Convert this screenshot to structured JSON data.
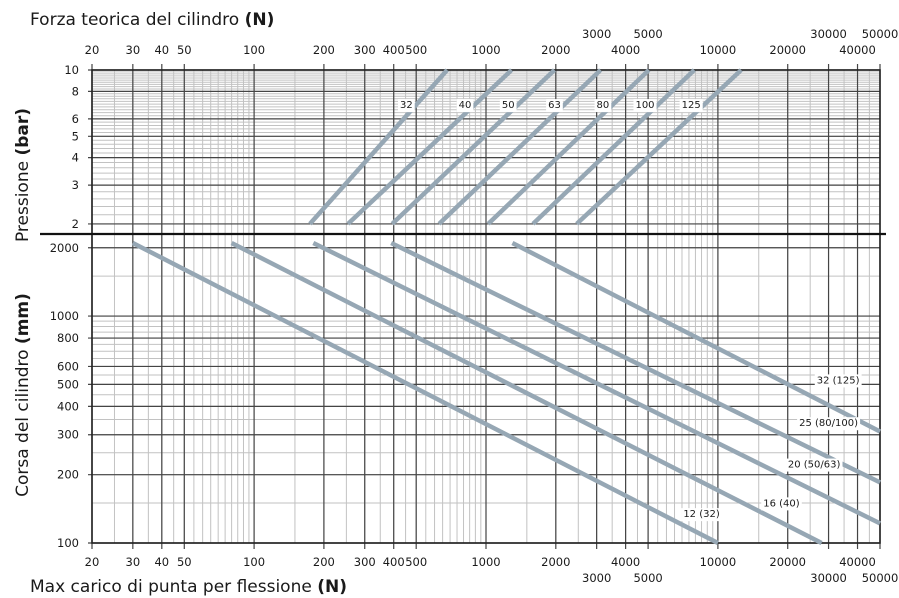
{
  "chart_data": {
    "type": "line",
    "title": "Forza teorica del cilindro",
    "title_unit": "(N)",
    "xlabel": "Max carico di punta per flessione",
    "xlabel_unit": "(N)",
    "x_scale": "log",
    "xlim": [
      20,
      50000
    ],
    "x_ticks": [
      {
        "v": 20,
        "t": "20",
        "row": 0
      },
      {
        "v": 30,
        "t": "30",
        "row": 0
      },
      {
        "v": 40,
        "t": "40",
        "row": 0
      },
      {
        "v": 50,
        "t": "50",
        "row": 0
      },
      {
        "v": 100,
        "t": "100",
        "row": 0
      },
      {
        "v": 200,
        "t": "200",
        "row": 0
      },
      {
        "v": 300,
        "t": "300",
        "row": 0
      },
      {
        "v": 400,
        "t": "400",
        "row": 0
      },
      {
        "v": 500,
        "t": "500",
        "row": 0
      },
      {
        "v": 1000,
        "t": "1000",
        "row": 0
      },
      {
        "v": 2000,
        "t": "2000",
        "row": 0
      },
      {
        "v": 3000,
        "t": "3000",
        "row": 1
      },
      {
        "v": 4000,
        "t": "4000",
        "row": 0
      },
      {
        "v": 5000,
        "t": "5000",
        "row": 1
      },
      {
        "v": 10000,
        "t": "10000",
        "row": 0
      },
      {
        "v": 20000,
        "t": "20000",
        "row": 0
      },
      {
        "v": 30000,
        "t": "30000",
        "row": 1
      },
      {
        "v": 40000,
        "t": "40000",
        "row": 0
      },
      {
        "v": 50000,
        "t": "50000",
        "row": 1
      }
    ],
    "top_panel": {
      "ylabel": "Pressione",
      "ylabel_unit": "(bar)",
      "y_scale": "log",
      "ylim": [
        1.8,
        10
      ],
      "y_ticks": [
        {
          "v": 2,
          "t": "2"
        },
        {
          "v": 3,
          "t": "3"
        },
        {
          "v": 4,
          "t": "4"
        },
        {
          "v": 5,
          "t": "5"
        },
        {
          "v": 6,
          "t": "6"
        },
        {
          "v": 8,
          "t": "8"
        },
        {
          "v": 10,
          "t": "10"
        }
      ],
      "series": [
        {
          "name": "32",
          "x": [
            174,
            680
          ],
          "y": [
            2,
            10
          ]
        },
        {
          "name": "40",
          "x": [
            254,
            1290
          ],
          "y": [
            2,
            10
          ]
        },
        {
          "name": "50",
          "x": [
            394,
            1975
          ],
          "y": [
            2,
            10
          ]
        },
        {
          "name": "63",
          "x": [
            628,
            3120
          ],
          "y": [
            2,
            10
          ]
        },
        {
          "name": "80",
          "x": [
            1022,
            5040
          ],
          "y": [
            2,
            10
          ]
        },
        {
          "name": "100",
          "x": [
            1595,
            7910
          ],
          "y": [
            2,
            10
          ]
        },
        {
          "name": "125",
          "x": [
            2460,
            12600
          ],
          "y": [
            2,
            10
          ]
        }
      ]
    },
    "bottom_panel": {
      "ylabel": "Corsa del cilindro",
      "ylabel_unit": "(mm)",
      "y_scale": "log",
      "ylim": [
        100,
        2300
      ],
      "y_ticks": [
        {
          "v": 100,
          "t": "100"
        },
        {
          "v": 200,
          "t": "200"
        },
        {
          "v": 300,
          "t": "300"
        },
        {
          "v": 400,
          "t": "400"
        },
        {
          "v": 500,
          "t": "500"
        },
        {
          "v": 600,
          "t": "600"
        },
        {
          "v": 800,
          "t": "800"
        },
        {
          "v": 1000,
          "t": "1000"
        },
        {
          "v": 2000,
          "t": "2000"
        }
      ],
      "series": [
        {
          "name": "12 (32)",
          "x": [
            30,
            10000
          ],
          "y": [
            2100,
            100
          ],
          "label_at": [
            8500,
            130
          ]
        },
        {
          "name": "16 (40)",
          "x": [
            80,
            28000
          ],
          "y": [
            2100,
            100
          ],
          "label_at": [
            18800,
            145
          ]
        },
        {
          "name": "20 (50/63)",
          "x": [
            180,
            50000
          ],
          "y": [
            2100,
            122
          ],
          "label_at": [
            26000,
            215
          ]
        },
        {
          "name": "25 (80/100)",
          "x": [
            390,
            50000
          ],
          "y": [
            2100,
            185
          ],
          "label_at": [
            30000,
            327
          ]
        },
        {
          "name": "32 (125)",
          "x": [
            1300,
            50000
          ],
          "y": [
            2100,
            310
          ],
          "label_at": [
            33000,
            505
          ]
        }
      ]
    }
  }
}
